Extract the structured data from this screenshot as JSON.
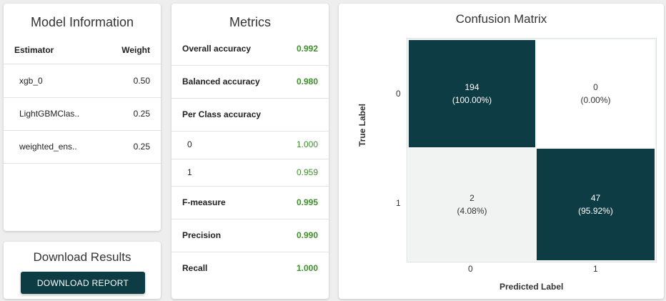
{
  "model_info": {
    "title": "Model Information",
    "headers": {
      "estimator": "Estimator",
      "weight": "Weight"
    },
    "rows": [
      {
        "estimator": "xgb_0",
        "weight": "0.50"
      },
      {
        "estimator": "LightGBMClas..",
        "weight": "0.25"
      },
      {
        "estimator": "weighted_ens..",
        "weight": "0.25"
      }
    ]
  },
  "download": {
    "title": "Download Results",
    "button_label": "DOWNLOAD REPORT"
  },
  "metrics": {
    "title": "Metrics",
    "rows": [
      {
        "label": "Overall accuracy",
        "value": "0.992"
      },
      {
        "label": "Balanced accuracy",
        "value": "0.980"
      },
      {
        "label": "Per Class accuracy",
        "value": ""
      },
      {
        "label": "0",
        "value": "1.000"
      },
      {
        "label": "1",
        "value": "0.959"
      },
      {
        "label": "F-measure",
        "value": "0.995"
      },
      {
        "label": "Precision",
        "value": "0.990"
      },
      {
        "label": "Recall",
        "value": "1.000"
      }
    ]
  },
  "confusion_matrix": {
    "title": "Confusion Matrix",
    "true_label": "True Label",
    "predicted_label": "Predicted Label",
    "row_ticks": [
      "0",
      "1"
    ],
    "col_ticks": [
      "0",
      "1"
    ],
    "cells": [
      {
        "count": "194",
        "pct": "(100.00%)"
      },
      {
        "count": "0",
        "pct": "(0.00%)"
      },
      {
        "count": "2",
        "pct": "(4.08%)"
      },
      {
        "count": "47",
        "pct": "(95.92%)"
      }
    ],
    "colors": {
      "high": "#0e3c45",
      "low": "#f1f3f3",
      "zero": "#ffffff"
    }
  },
  "accent_green": "#3f8f2c"
}
